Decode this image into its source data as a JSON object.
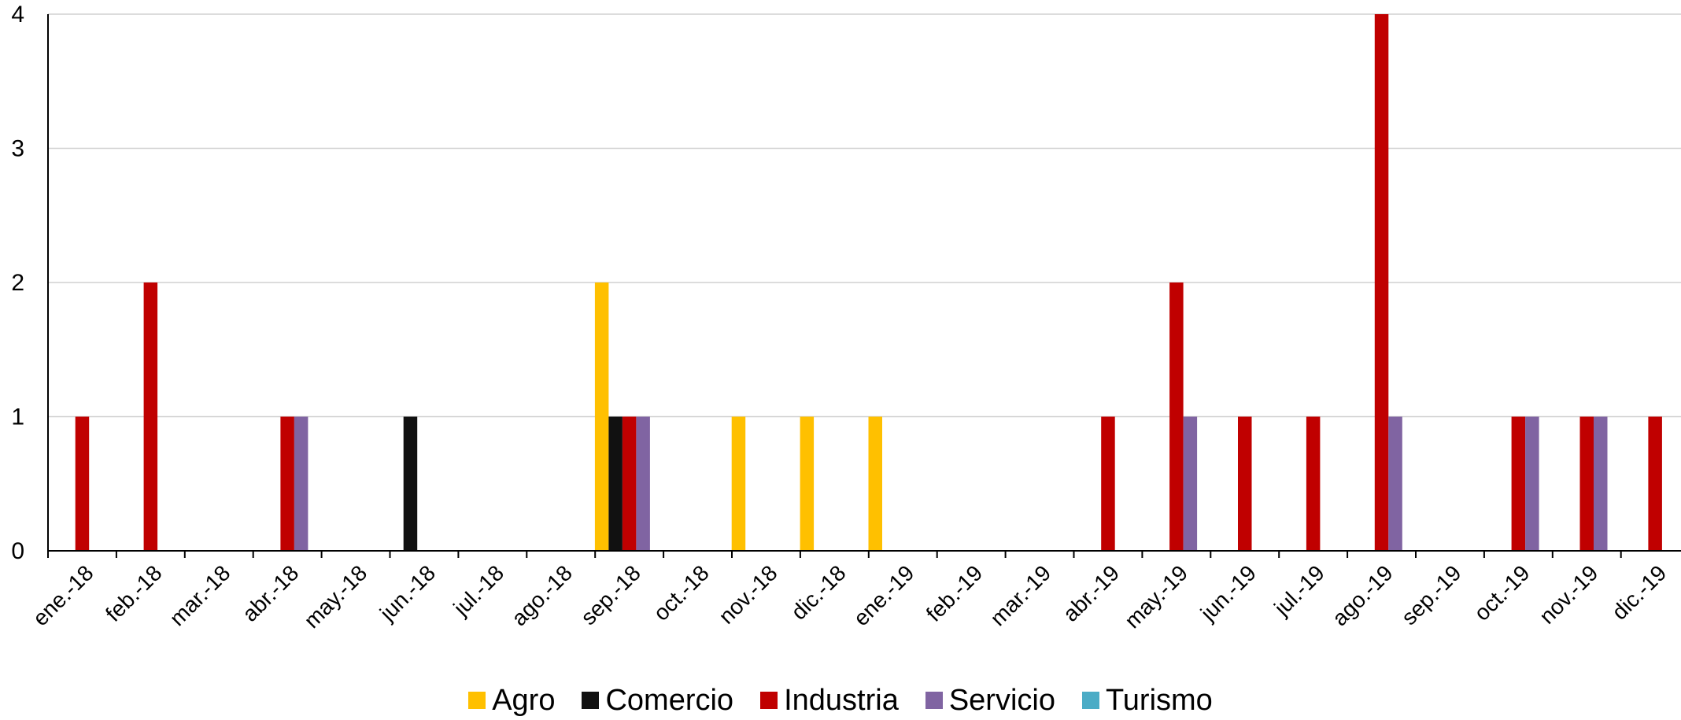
{
  "chart_data": {
    "type": "bar",
    "categories": [
      "ene.-18",
      "feb.-18",
      "mar.-18",
      "abr.-18",
      "may.-18",
      "jun.-18",
      "jul.-18",
      "ago.-18",
      "sep.-18",
      "oct.-18",
      "nov.-18",
      "dic.-18",
      "ene.-19",
      "feb.-19",
      "mar.-19",
      "abr.-19",
      "may.-19",
      "jun.-19",
      "jul.-19",
      "ago.-19",
      "sep.-19",
      "oct.-19",
      "nov.-19",
      "dic.-19"
    ],
    "series": [
      {
        "name": "Agro",
        "color": "#FFC000",
        "values": [
          0,
          0,
          0,
          0,
          0,
          0,
          0,
          0,
          2,
          0,
          1,
          1,
          1,
          0,
          0,
          0,
          0,
          0,
          0,
          0,
          0,
          0,
          0,
          0
        ]
      },
      {
        "name": "Comercio",
        "color": "#111111",
        "values": [
          0,
          0,
          0,
          0,
          0,
          1,
          0,
          0,
          1,
          0,
          0,
          0,
          0,
          0,
          0,
          0,
          0,
          0,
          0,
          0,
          0,
          0,
          0,
          0
        ]
      },
      {
        "name": "Industria",
        "color": "#C00000",
        "values": [
          1,
          2,
          0,
          1,
          0,
          0,
          0,
          0,
          1,
          0,
          0,
          0,
          0,
          0,
          0,
          1,
          2,
          1,
          1,
          4,
          0,
          1,
          1,
          1
        ]
      },
      {
        "name": "Servicio",
        "color": "#8064A2",
        "values": [
          0,
          0,
          0,
          1,
          0,
          0,
          0,
          0,
          1,
          0,
          0,
          0,
          0,
          0,
          0,
          0,
          1,
          0,
          0,
          1,
          0,
          1,
          1,
          0
        ]
      },
      {
        "name": "Turismo",
        "color": "#4BACC6",
        "values": [
          0,
          0,
          0,
          0,
          0,
          0,
          0,
          0,
          0,
          0,
          0,
          0,
          0,
          0,
          0,
          0,
          0,
          0,
          0,
          0,
          0,
          0,
          0,
          0
        ]
      }
    ],
    "yticks": [
      "0",
      "1",
      "2",
      "3",
      "4"
    ],
    "ylim": [
      0,
      4
    ],
    "grid": true,
    "legend_position": "bottom"
  }
}
